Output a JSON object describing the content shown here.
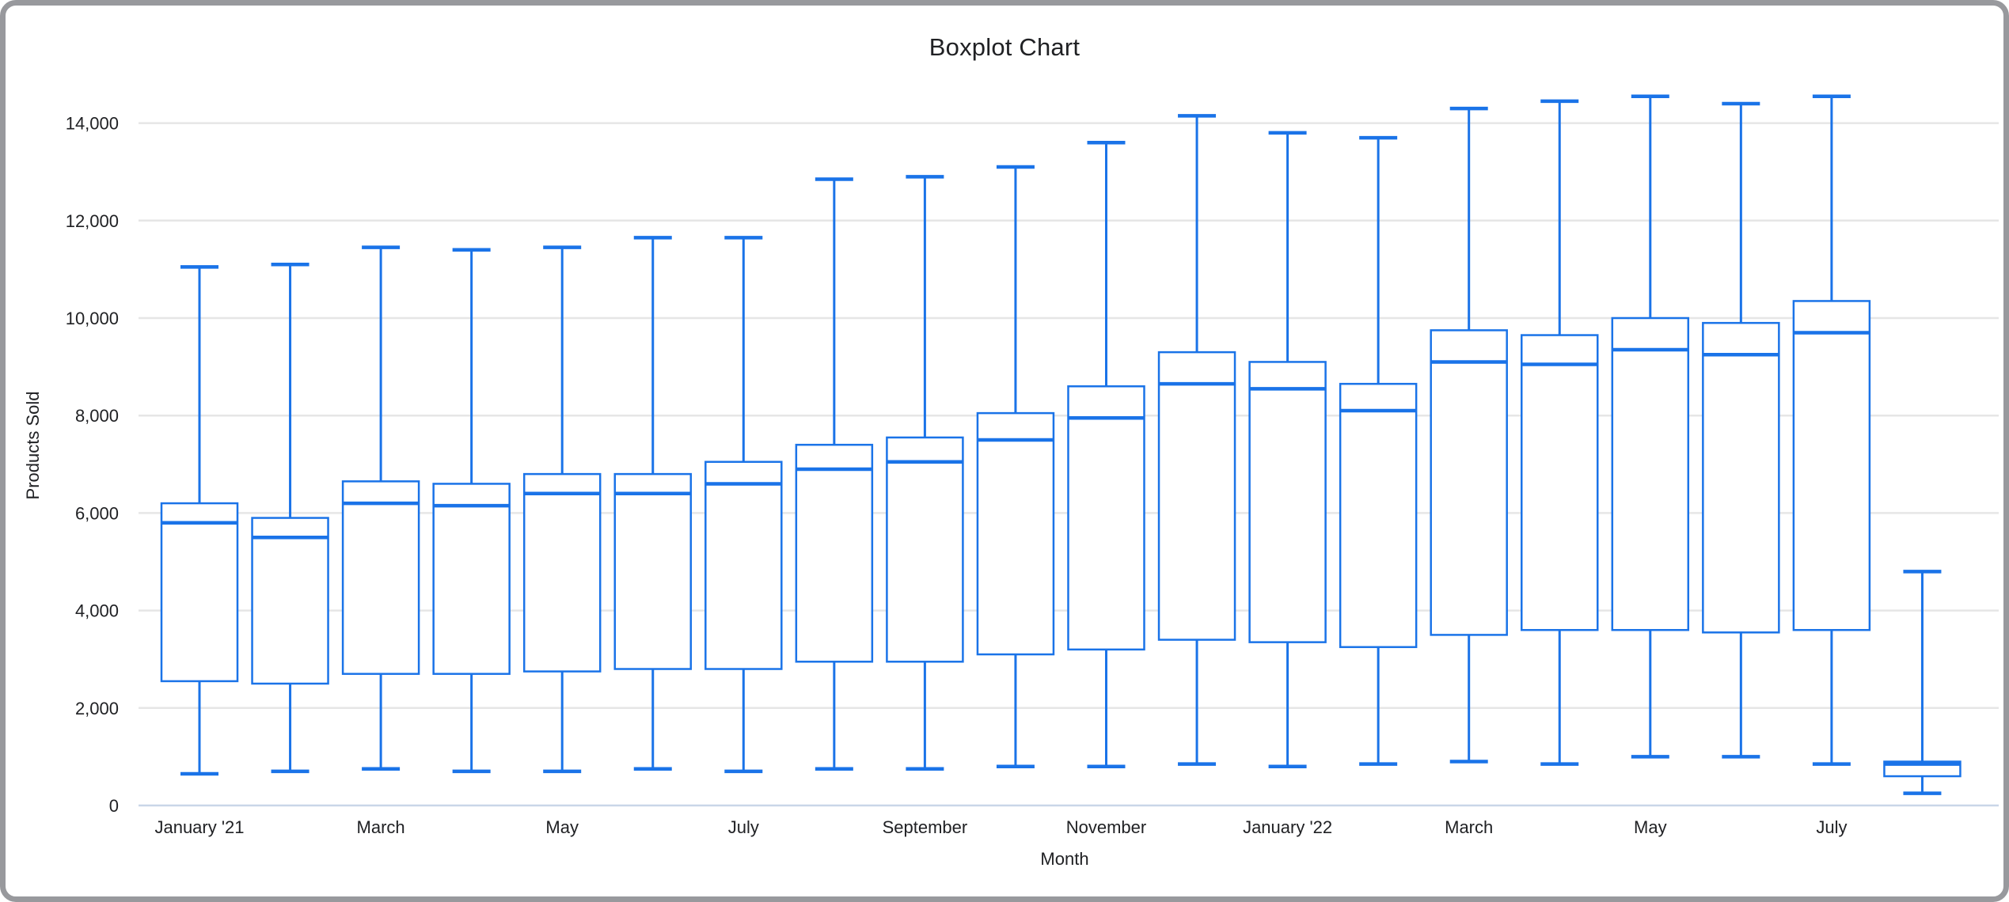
{
  "chart_data": {
    "type": "boxplot",
    "title": "Boxplot Chart",
    "xlabel": "Month",
    "ylabel": "Products Sold",
    "grid": true,
    "legend_position": "none",
    "ylim": [
      0,
      15000
    ],
    "y_ticks": [
      {
        "value": 0,
        "label": "0"
      },
      {
        "value": 2000,
        "label": "2,000"
      },
      {
        "value": 4000,
        "label": "4,000"
      },
      {
        "value": 6000,
        "label": "6,000"
      },
      {
        "value": 8000,
        "label": "8,000"
      },
      {
        "value": 10000,
        "label": "10,000"
      },
      {
        "value": 12000,
        "label": "12,000"
      },
      {
        "value": 14000,
        "label": "14,000"
      }
    ],
    "x_tick_labels": [
      {
        "index": 0,
        "label": "January '21"
      },
      {
        "index": 2,
        "label": "March"
      },
      {
        "index": 4,
        "label": "May"
      },
      {
        "index": 6,
        "label": "July"
      },
      {
        "index": 8,
        "label": "September"
      },
      {
        "index": 10,
        "label": "November"
      },
      {
        "index": 12,
        "label": "January '22"
      },
      {
        "index": 14,
        "label": "March"
      },
      {
        "index": 16,
        "label": "May"
      },
      {
        "index": 18,
        "label": "July"
      }
    ],
    "boxes": [
      {
        "min": 650,
        "q1": 2550,
        "median": 5800,
        "q3": 6200,
        "max": 11050
      },
      {
        "min": 700,
        "q1": 2500,
        "median": 5500,
        "q3": 5900,
        "max": 11100
      },
      {
        "min": 750,
        "q1": 2700,
        "median": 6200,
        "q3": 6650,
        "max": 11450
      },
      {
        "min": 700,
        "q1": 2700,
        "median": 6150,
        "q3": 6600,
        "max": 11400
      },
      {
        "min": 700,
        "q1": 2750,
        "median": 6400,
        "q3": 6800,
        "max": 11450
      },
      {
        "min": 750,
        "q1": 2800,
        "median": 6400,
        "q3": 6800,
        "max": 11650
      },
      {
        "min": 700,
        "q1": 2800,
        "median": 6600,
        "q3": 7050,
        "max": 11650
      },
      {
        "min": 750,
        "q1": 2950,
        "median": 6900,
        "q3": 7400,
        "max": 12850
      },
      {
        "min": 750,
        "q1": 2950,
        "median": 7050,
        "q3": 7550,
        "max": 12900
      },
      {
        "min": 800,
        "q1": 3100,
        "median": 7500,
        "q3": 8050,
        "max": 13100
      },
      {
        "min": 800,
        "q1": 3200,
        "median": 7950,
        "q3": 8600,
        "max": 13600
      },
      {
        "min": 850,
        "q1": 3400,
        "median": 8650,
        "q3": 9300,
        "max": 14150
      },
      {
        "min": 800,
        "q1": 3350,
        "median": 8550,
        "q3": 9100,
        "max": 13800
      },
      {
        "min": 850,
        "q1": 3250,
        "median": 8100,
        "q3": 8650,
        "max": 13700
      },
      {
        "min": 900,
        "q1": 3500,
        "median": 9100,
        "q3": 9750,
        "max": 14300
      },
      {
        "min": 850,
        "q1": 3600,
        "median": 9050,
        "q3": 9650,
        "max": 14450
      },
      {
        "min": 1000,
        "q1": 3600,
        "median": 9350,
        "q3": 10000,
        "max": 14550
      },
      {
        "min": 1000,
        "q1": 3550,
        "median": 9250,
        "q3": 9900,
        "max": 14400
      },
      {
        "min": 850,
        "q1": 3600,
        "median": 9700,
        "q3": 10350,
        "max": 14550
      },
      {
        "min": 250,
        "q1": 600,
        "median": 850,
        "q3": 900,
        "max": 4800
      }
    ]
  },
  "colors": {
    "accent": "#1a73e8",
    "gridline": "#e6e6e6",
    "baseline": "#c9d6e8",
    "text": "#202124",
    "window_border": "#98999d",
    "background": "#ffffff"
  }
}
